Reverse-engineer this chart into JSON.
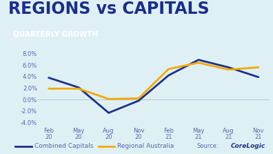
{
  "title_line1": "REGIONS vs CAPITALS",
  "title_line2": "QUARTERLY GROWTH",
  "x_labels": [
    "Feb\n20",
    "May\n20",
    "Aug\n20",
    "Nov\n20",
    "Feb\n21",
    "May\n21",
    "Aug\n21",
    "Nov\n21"
  ],
  "combined_capitals": [
    3.8,
    2.1,
    -2.3,
    -0.2,
    4.2,
    6.9,
    5.6,
    3.9
  ],
  "regional_australia": [
    1.9,
    1.9,
    0.1,
    0.2,
    5.3,
    6.4,
    5.2,
    5.6
  ],
  "ylim": [
    -4.5,
    9.0
  ],
  "yticks": [
    -4.0,
    -2.0,
    0.0,
    2.0,
    4.0,
    6.0,
    8.0
  ],
  "color_capitals": "#1a2e8c",
  "color_regional": "#f5a800",
  "bg_color": "#dff0f5",
  "title1_color": "#1a2e8c",
  "title2_bg": "#1a2e8c",
  "legend_capitals": "Combined Capitals",
  "legend_regional": "Regional Australia",
  "source_text": "Source:",
  "corelogic_text": "CoreLogic",
  "axis_color": "#5566aa",
  "tick_fontsize": 6.0,
  "grid_color": "#b8c8d8",
  "title1_fontsize": 17,
  "title2_fontsize": 7.5
}
